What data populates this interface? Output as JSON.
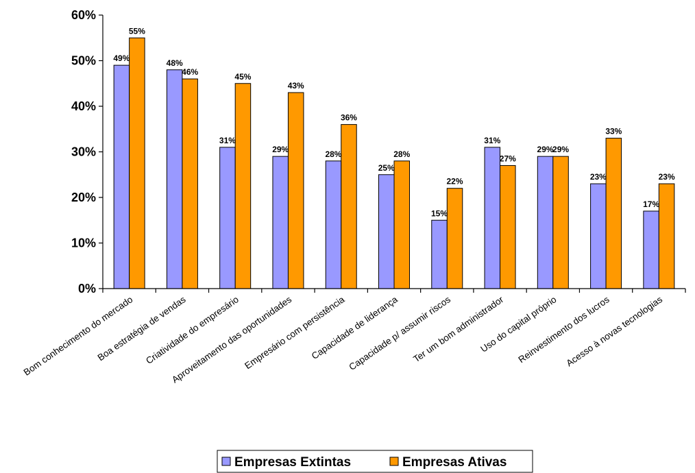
{
  "chart_data": {
    "type": "bar",
    "categories": [
      "Bom conhecimento do mercado",
      "Boa estratégia de vendas",
      "Criatividade do empresário",
      "Aproveitamento das oportunidades",
      "Empresário com persistência",
      "Capacidade de liderança",
      "Capacidade p/ assumir riscos",
      "Ter um bom administrador",
      "Uso do capital próprio",
      "Reinvestimento dos lucros",
      "Acesso à novas tecnologias"
    ],
    "series": [
      {
        "name": "Empresas Extintas",
        "color": "#9999ff",
        "values": [
          49,
          48,
          31,
          29,
          28,
          25,
          15,
          31,
          29,
          23,
          17
        ]
      },
      {
        "name": "Empresas Ativas",
        "color": "#ff9900",
        "values": [
          55,
          46,
          45,
          43,
          36,
          28,
          22,
          27,
          29,
          33,
          23
        ]
      }
    ],
    "data_labels": [
      [
        "49%",
        "48%",
        "31%",
        "29%",
        "28%",
        "25%",
        "15%",
        "31%",
        "29%",
        "23%",
        "17%"
      ],
      [
        "55%",
        "46%",
        "45%",
        "43%",
        "36%",
        "28%",
        "22%",
        "27%",
        "29%",
        "33%",
        "23%"
      ]
    ],
    "y_ticks": [
      "0%",
      "10%",
      "20%",
      "30%",
      "40%",
      "50%",
      "60%"
    ],
    "y_tick_values": [
      0,
      10,
      20,
      30,
      40,
      50,
      60
    ],
    "ylim": [
      0,
      60
    ],
    "grid": false,
    "legend_position": "bottom",
    "title": "",
    "xlabel": "",
    "ylabel": ""
  }
}
